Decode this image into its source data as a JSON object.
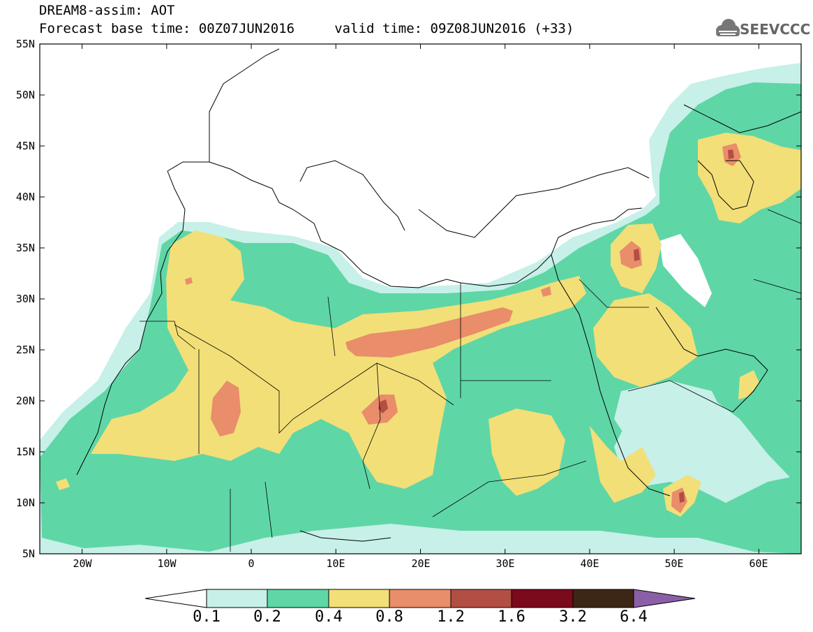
{
  "title_line1": "DREAM8-assim: AOT",
  "title_line2": "Forecast base time: 00Z07JUN2016     valid time: 09Z08JUN2016 (+33)",
  "logo_text": "SEEVCCC",
  "map": {
    "lat_labels": [
      "55N",
      "50N",
      "45N",
      "40N",
      "35N",
      "30N",
      "25N",
      "20N",
      "15N",
      "10N",
      "5N"
    ],
    "lon_labels": [
      "20W",
      "10W",
      "0",
      "10E",
      "20E",
      "30E",
      "40E",
      "50E",
      "60E"
    ],
    "lat_range": [
      5,
      55
    ],
    "lon_range": [
      -25,
      65
    ]
  },
  "colorbar": {
    "labels": [
      "0.1",
      "0.2",
      "0.4",
      "0.8",
      "1.2",
      "1.6",
      "3.2",
      "6.4"
    ],
    "colors": [
      "#ffffff",
      "#c6f0e8",
      "#5fd6a6",
      "#f2df78",
      "#e98d6a",
      "#b24e42",
      "#7a0a1c",
      "#3d2615",
      "#8a5fa8"
    ]
  }
}
